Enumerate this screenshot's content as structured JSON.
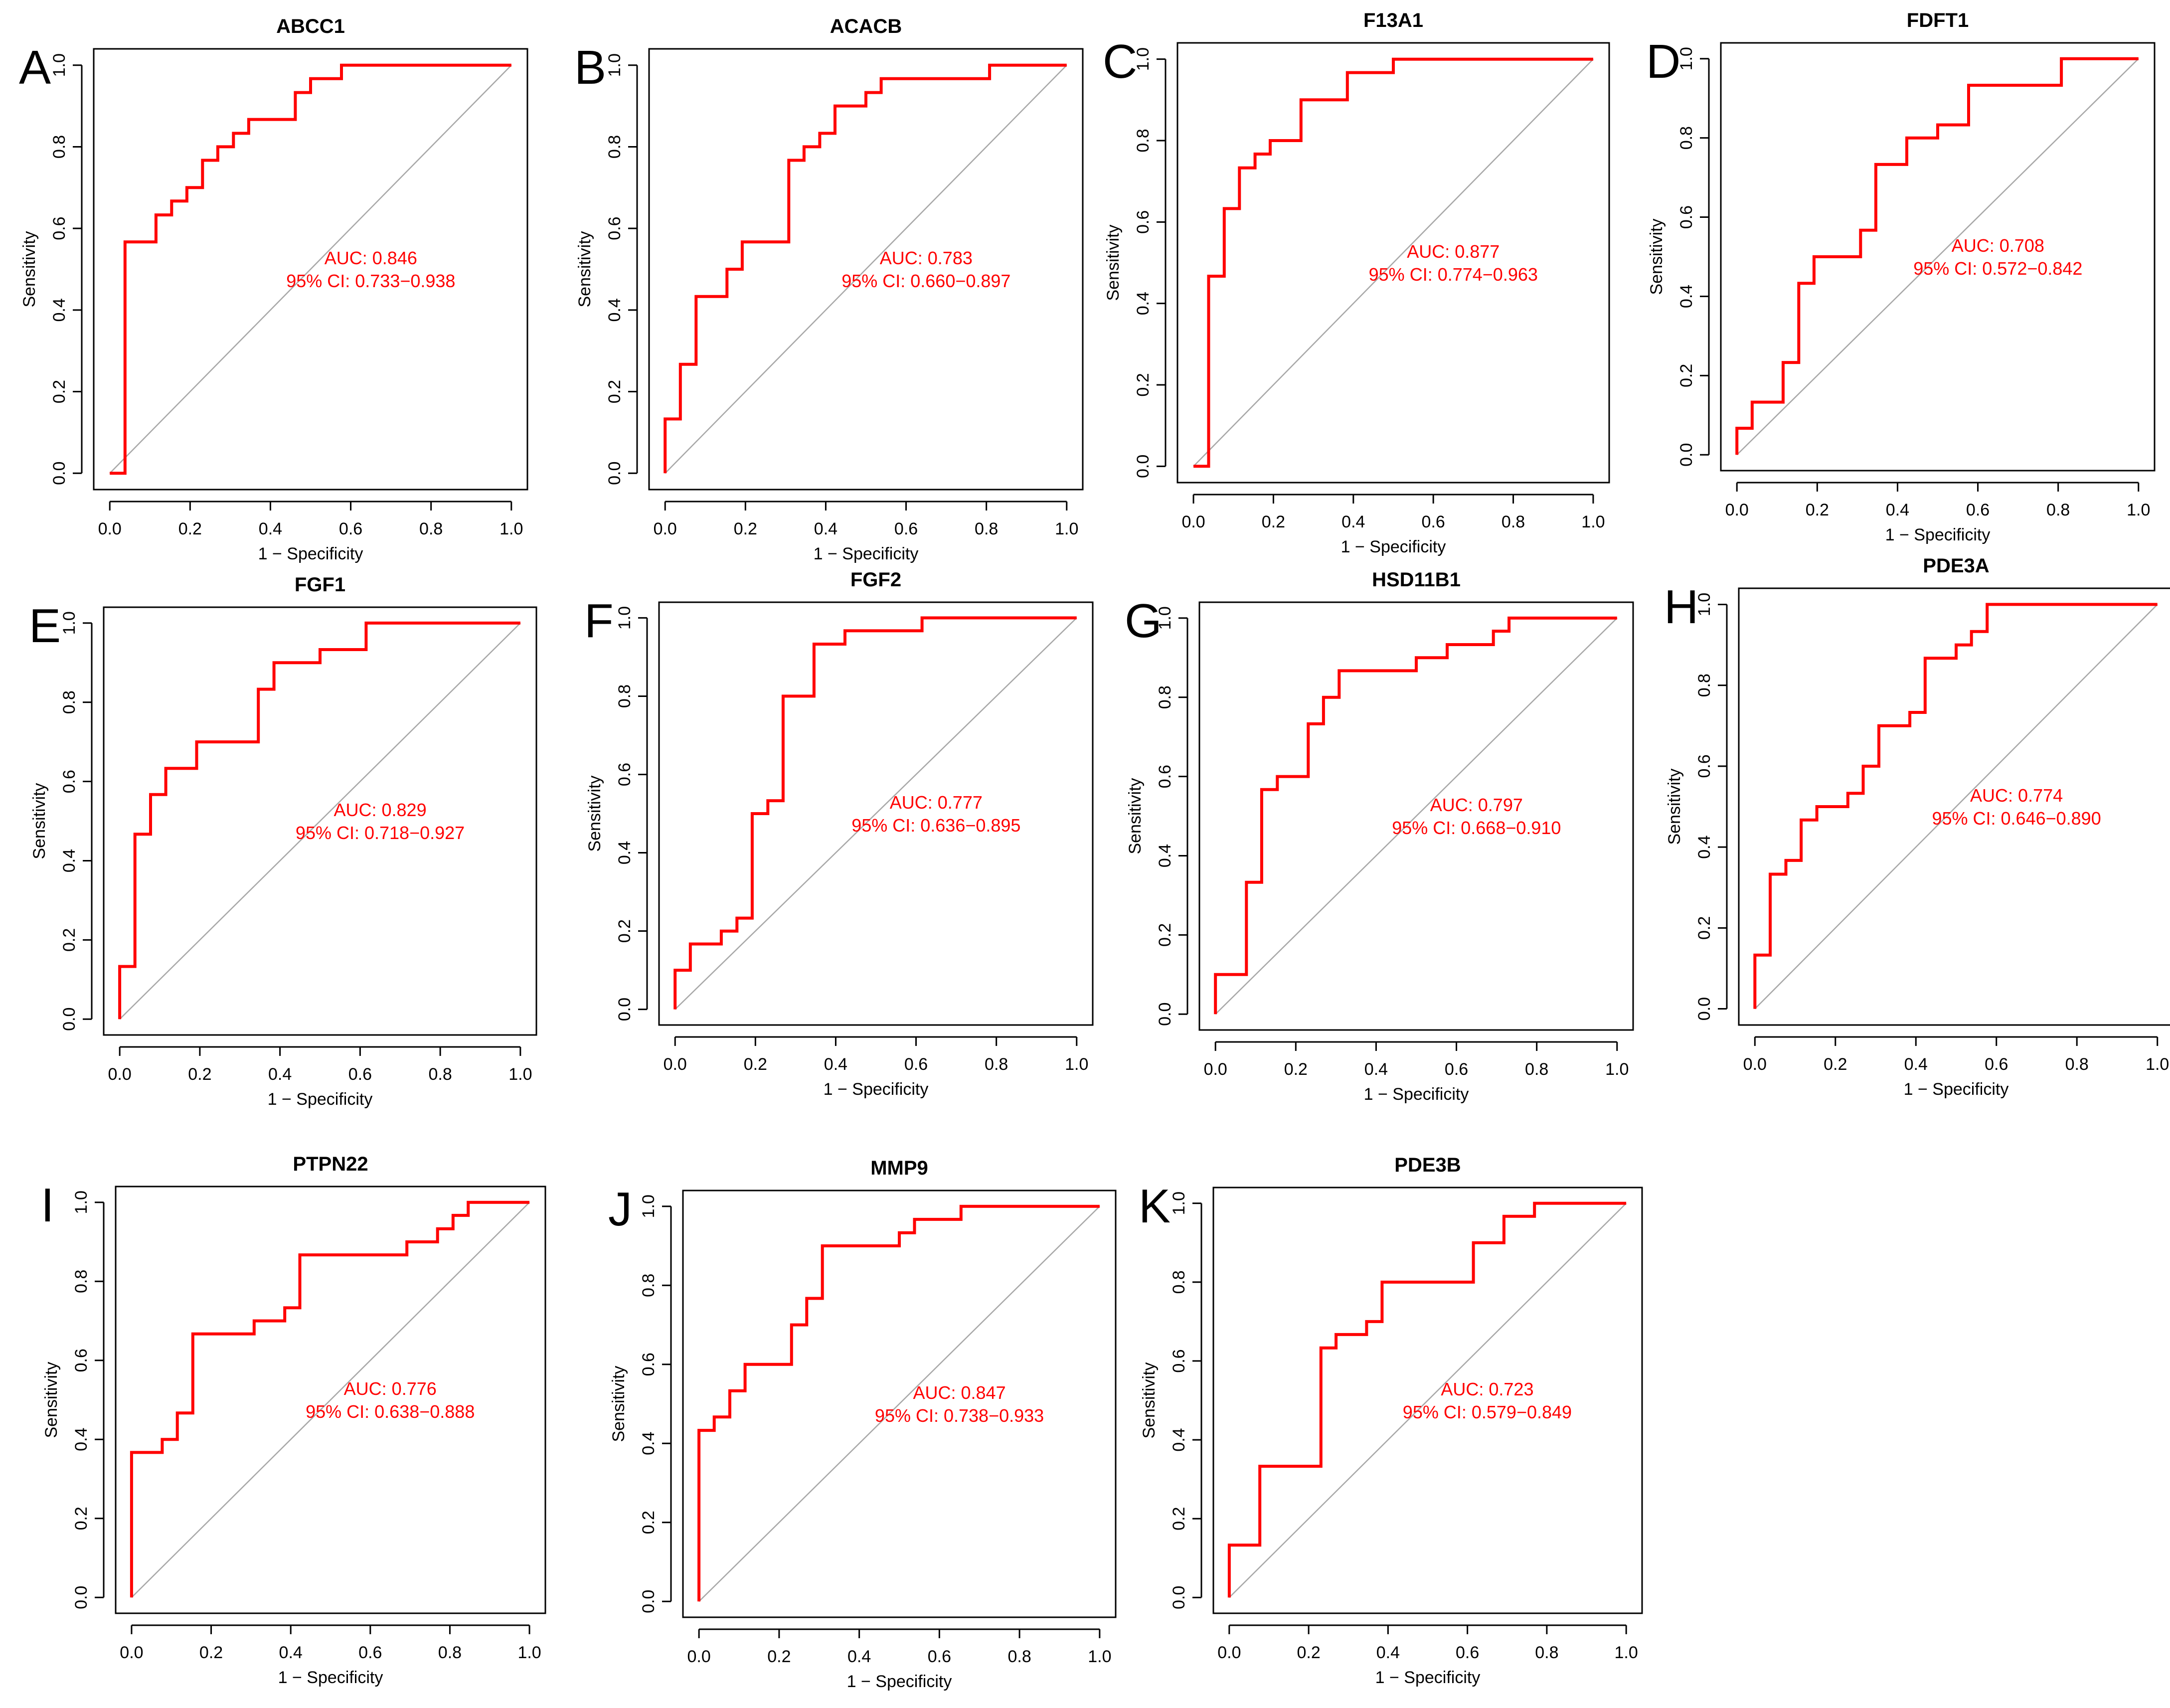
{
  "chart_data": [
    {
      "panel": "A",
      "type": "line",
      "title": "ABCC1",
      "xlabel": "1 − Specificity",
      "ylabel": "Sensitivity",
      "xlim": [
        0,
        1
      ],
      "ylim": [
        0,
        1
      ],
      "xticks": [
        "0.0",
        "0.2",
        "0.4",
        "0.6",
        "0.8",
        "1.0"
      ],
      "yticks": [
        "0.0",
        "0.2",
        "0.4",
        "0.6",
        "0.8",
        "1.0"
      ],
      "auc_label": "AUC: 0.846",
      "ci_label": "95% CI: 0.733−0.938",
      "roc": [
        [
          0,
          0
        ],
        [
          0.038,
          0
        ],
        [
          0.038,
          0.567
        ],
        [
          0.115,
          0.567
        ],
        [
          0.115,
          0.633
        ],
        [
          0.154,
          0.633
        ],
        [
          0.154,
          0.667
        ],
        [
          0.192,
          0.667
        ],
        [
          0.192,
          0.7
        ],
        [
          0.231,
          0.7
        ],
        [
          0.231,
          0.767
        ],
        [
          0.269,
          0.767
        ],
        [
          0.269,
          0.8
        ],
        [
          0.308,
          0.8
        ],
        [
          0.308,
          0.833
        ],
        [
          0.346,
          0.833
        ],
        [
          0.346,
          0.867
        ],
        [
          0.462,
          0.867
        ],
        [
          0.462,
          0.933
        ],
        [
          0.5,
          0.933
        ],
        [
          0.5,
          0.967
        ],
        [
          0.577,
          0.967
        ],
        [
          0.577,
          1
        ],
        [
          1,
          1
        ]
      ]
    },
    {
      "panel": "B",
      "type": "line",
      "title": "ACACB",
      "xlabel": "1 − Specificity",
      "ylabel": "Sensitivity",
      "xlim": [
        0,
        1
      ],
      "ylim": [
        0,
        1
      ],
      "xticks": [
        "0.0",
        "0.2",
        "0.4",
        "0.6",
        "0.8",
        "1.0"
      ],
      "yticks": [
        "0.0",
        "0.2",
        "0.4",
        "0.6",
        "0.8",
        "1.0"
      ],
      "auc_label": "AUC: 0.783",
      "ci_label": "95% CI: 0.660−0.897",
      "roc": [
        [
          0,
          0
        ],
        [
          0,
          0.133
        ],
        [
          0.038,
          0.133
        ],
        [
          0.038,
          0.267
        ],
        [
          0.077,
          0.267
        ],
        [
          0.077,
          0.433
        ],
        [
          0.154,
          0.433
        ],
        [
          0.154,
          0.5
        ],
        [
          0.192,
          0.5
        ],
        [
          0.192,
          0.567
        ],
        [
          0.308,
          0.567
        ],
        [
          0.308,
          0.767
        ],
        [
          0.346,
          0.767
        ],
        [
          0.346,
          0.8
        ],
        [
          0.385,
          0.8
        ],
        [
          0.385,
          0.833
        ],
        [
          0.423,
          0.833
        ],
        [
          0.423,
          0.9
        ],
        [
          0.5,
          0.9
        ],
        [
          0.5,
          0.933
        ],
        [
          0.538,
          0.933
        ],
        [
          0.538,
          0.967
        ],
        [
          0.808,
          0.967
        ],
        [
          0.808,
          1
        ],
        [
          1,
          1
        ]
      ]
    },
    {
      "panel": "C",
      "type": "line",
      "title": "F13A1",
      "xlabel": "1 − Specificity",
      "ylabel": "Sensitivity",
      "xlim": [
        0,
        1
      ],
      "ylim": [
        0,
        1
      ],
      "xticks": [
        "0.0",
        "0.2",
        "0.4",
        "0.6",
        "0.8",
        "1.0"
      ],
      "yticks": [
        "0.0",
        "0.2",
        "0.4",
        "0.6",
        "0.8",
        "1.0"
      ],
      "auc_label": "AUC: 0.877",
      "ci_label": "95% CI: 0.774−0.963",
      "roc": [
        [
          0,
          0
        ],
        [
          0.038,
          0
        ],
        [
          0.038,
          0.467
        ],
        [
          0.077,
          0.467
        ],
        [
          0.077,
          0.633
        ],
        [
          0.115,
          0.633
        ],
        [
          0.115,
          0.733
        ],
        [
          0.154,
          0.733
        ],
        [
          0.154,
          0.767
        ],
        [
          0.192,
          0.767
        ],
        [
          0.192,
          0.8
        ],
        [
          0.269,
          0.8
        ],
        [
          0.269,
          0.9
        ],
        [
          0.385,
          0.9
        ],
        [
          0.385,
          0.967
        ],
        [
          0.5,
          0.967
        ],
        [
          0.5,
          1
        ],
        [
          1,
          1
        ]
      ]
    },
    {
      "panel": "D",
      "type": "line",
      "title": "FDFT1",
      "xlabel": "1 − Specificity",
      "ylabel": "Sensitivity",
      "xlim": [
        0,
        1
      ],
      "ylim": [
        0,
        1
      ],
      "xticks": [
        "0.0",
        "0.2",
        "0.4",
        "0.6",
        "0.8",
        "1.0"
      ],
      "yticks": [
        "0.0",
        "0.2",
        "0.4",
        "0.6",
        "0.8",
        "1.0"
      ],
      "auc_label": "AUC: 0.708",
      "ci_label": "95% CI: 0.572−0.842",
      "roc": [
        [
          0,
          0
        ],
        [
          0,
          0.067
        ],
        [
          0.038,
          0.067
        ],
        [
          0.038,
          0.133
        ],
        [
          0.115,
          0.133
        ],
        [
          0.115,
          0.233
        ],
        [
          0.154,
          0.233
        ],
        [
          0.154,
          0.433
        ],
        [
          0.192,
          0.433
        ],
        [
          0.192,
          0.5
        ],
        [
          0.308,
          0.5
        ],
        [
          0.308,
          0.567
        ],
        [
          0.346,
          0.567
        ],
        [
          0.346,
          0.733
        ],
        [
          0.423,
          0.733
        ],
        [
          0.423,
          0.8
        ],
        [
          0.5,
          0.8
        ],
        [
          0.5,
          0.833
        ],
        [
          0.577,
          0.833
        ],
        [
          0.577,
          0.933
        ],
        [
          0.808,
          0.933
        ],
        [
          0.808,
          1
        ],
        [
          1,
          1
        ]
      ]
    },
    {
      "panel": "E",
      "type": "line",
      "title": "FGF1",
      "xlabel": "1 − Specificity",
      "ylabel": "Sensitivity",
      "xlim": [
        0,
        1
      ],
      "ylim": [
        0,
        1
      ],
      "xticks": [
        "0.0",
        "0.2",
        "0.4",
        "0.6",
        "0.8",
        "1.0"
      ],
      "yticks": [
        "0.0",
        "0.2",
        "0.4",
        "0.6",
        "0.8",
        "1.0"
      ],
      "auc_label": "AUC: 0.829",
      "ci_label": "95% CI: 0.718−0.927",
      "roc": [
        [
          0,
          0
        ],
        [
          0,
          0.133
        ],
        [
          0.038,
          0.133
        ],
        [
          0.038,
          0.467
        ],
        [
          0.077,
          0.467
        ],
        [
          0.077,
          0.567
        ],
        [
          0.115,
          0.567
        ],
        [
          0.115,
          0.633
        ],
        [
          0.192,
          0.633
        ],
        [
          0.192,
          0.7
        ],
        [
          0.346,
          0.7
        ],
        [
          0.346,
          0.833
        ],
        [
          0.385,
          0.833
        ],
        [
          0.385,
          0.9
        ],
        [
          0.5,
          0.9
        ],
        [
          0.5,
          0.933
        ],
        [
          0.615,
          0.933
        ],
        [
          0.615,
          1
        ],
        [
          1,
          1
        ]
      ]
    },
    {
      "panel": "F",
      "type": "line",
      "title": "FGF2",
      "xlabel": "1 − Specificity",
      "ylabel": "Sensitivity",
      "xlim": [
        0,
        1
      ],
      "ylim": [
        0,
        1
      ],
      "xticks": [
        "0.0",
        "0.2",
        "0.4",
        "0.6",
        "0.8",
        "1.0"
      ],
      "yticks": [
        "0.0",
        "0.2",
        "0.4",
        "0.6",
        "0.8",
        "1.0"
      ],
      "auc_label": "AUC: 0.777",
      "ci_label": "95% CI: 0.636−0.895",
      "roc": [
        [
          0,
          0
        ],
        [
          0,
          0.1
        ],
        [
          0.038,
          0.1
        ],
        [
          0.038,
          0.167
        ],
        [
          0.115,
          0.167
        ],
        [
          0.115,
          0.2
        ],
        [
          0.154,
          0.2
        ],
        [
          0.154,
          0.233
        ],
        [
          0.192,
          0.233
        ],
        [
          0.192,
          0.5
        ],
        [
          0.231,
          0.5
        ],
        [
          0.231,
          0.533
        ],
        [
          0.269,
          0.533
        ],
        [
          0.269,
          0.8
        ],
        [
          0.346,
          0.8
        ],
        [
          0.346,
          0.933
        ],
        [
          0.423,
          0.933
        ],
        [
          0.423,
          0.967
        ],
        [
          0.615,
          0.967
        ],
        [
          0.615,
          1
        ],
        [
          1,
          1
        ]
      ]
    },
    {
      "panel": "G",
      "type": "line",
      "title": "HSD11B1",
      "xlabel": "1 − Specificity",
      "ylabel": "Sensitivity",
      "xlim": [
        0,
        1
      ],
      "ylim": [
        0,
        1
      ],
      "xticks": [
        "0.0",
        "0.2",
        "0.4",
        "0.6",
        "0.8",
        "1.0"
      ],
      "yticks": [
        "0.0",
        "0.2",
        "0.4",
        "0.6",
        "0.8",
        "1.0"
      ],
      "auc_label": "AUC: 0.797",
      "ci_label": "95% CI: 0.668−0.910",
      "roc": [
        [
          0,
          0
        ],
        [
          0,
          0.1
        ],
        [
          0.077,
          0.1
        ],
        [
          0.077,
          0.333
        ],
        [
          0.115,
          0.333
        ],
        [
          0.115,
          0.567
        ],
        [
          0.154,
          0.567
        ],
        [
          0.154,
          0.6
        ],
        [
          0.231,
          0.6
        ],
        [
          0.231,
          0.733
        ],
        [
          0.269,
          0.733
        ],
        [
          0.269,
          0.8
        ],
        [
          0.308,
          0.8
        ],
        [
          0.308,
          0.867
        ],
        [
          0.5,
          0.867
        ],
        [
          0.5,
          0.9
        ],
        [
          0.577,
          0.9
        ],
        [
          0.577,
          0.933
        ],
        [
          0.692,
          0.933
        ],
        [
          0.692,
          0.967
        ],
        [
          0.731,
          0.967
        ],
        [
          0.731,
          1
        ],
        [
          1,
          1
        ]
      ]
    },
    {
      "panel": "H",
      "type": "line",
      "title": "PDE3A",
      "xlabel": "1 − Specificity",
      "ylabel": "Sensitivity",
      "xlim": [
        0,
        1
      ],
      "ylim": [
        0,
        1
      ],
      "xticks": [
        "0.0",
        "0.2",
        "0.4",
        "0.6",
        "0.8",
        "1.0"
      ],
      "yticks": [
        "0.0",
        "0.2",
        "0.4",
        "0.6",
        "0.8",
        "1.0"
      ],
      "auc_label": "AUC: 0.774",
      "ci_label": "95% CI: 0.646−0.890",
      "roc": [
        [
          0,
          0
        ],
        [
          0,
          0.133
        ],
        [
          0.038,
          0.133
        ],
        [
          0.038,
          0.333
        ],
        [
          0.077,
          0.333
        ],
        [
          0.077,
          0.367
        ],
        [
          0.115,
          0.367
        ],
        [
          0.115,
          0.467
        ],
        [
          0.154,
          0.467
        ],
        [
          0.154,
          0.5
        ],
        [
          0.231,
          0.5
        ],
        [
          0.231,
          0.533
        ],
        [
          0.269,
          0.533
        ],
        [
          0.269,
          0.6
        ],
        [
          0.308,
          0.6
        ],
        [
          0.308,
          0.7
        ],
        [
          0.385,
          0.7
        ],
        [
          0.385,
          0.733
        ],
        [
          0.423,
          0.733
        ],
        [
          0.423,
          0.867
        ],
        [
          0.5,
          0.867
        ],
        [
          0.5,
          0.9
        ],
        [
          0.538,
          0.9
        ],
        [
          0.538,
          0.933
        ],
        [
          0.577,
          0.933
        ],
        [
          0.577,
          1
        ],
        [
          1,
          1
        ]
      ]
    },
    {
      "panel": "I",
      "type": "line",
      "title": "PTPN22",
      "xlabel": "1 − Specificity",
      "ylabel": "Sensitivity",
      "xlim": [
        0,
        1
      ],
      "ylim": [
        0,
        1
      ],
      "xticks": [
        "0.0",
        "0.2",
        "0.4",
        "0.6",
        "0.8",
        "1.0"
      ],
      "yticks": [
        "0.0",
        "0.2",
        "0.4",
        "0.6",
        "0.8",
        "1.0"
      ],
      "auc_label": "AUC: 0.776",
      "ci_label": "95% CI: 0.638−0.888",
      "roc": [
        [
          0,
          0
        ],
        [
          0,
          0.367
        ],
        [
          0.077,
          0.367
        ],
        [
          0.077,
          0.4
        ],
        [
          0.115,
          0.4
        ],
        [
          0.115,
          0.467
        ],
        [
          0.154,
          0.467
        ],
        [
          0.154,
          0.667
        ],
        [
          0.308,
          0.667
        ],
        [
          0.308,
          0.7
        ],
        [
          0.385,
          0.7
        ],
        [
          0.385,
          0.733
        ],
        [
          0.423,
          0.733
        ],
        [
          0.423,
          0.867
        ],
        [
          0.692,
          0.867
        ],
        [
          0.692,
          0.9
        ],
        [
          0.769,
          0.9
        ],
        [
          0.769,
          0.933
        ],
        [
          0.808,
          0.933
        ],
        [
          0.808,
          0.967
        ],
        [
          0.846,
          0.967
        ],
        [
          0.846,
          1
        ],
        [
          1,
          1
        ]
      ]
    },
    {
      "panel": "J",
      "type": "line",
      "title": "MMP9",
      "xlabel": "1 − Specificity",
      "ylabel": "Sensitivity",
      "xlim": [
        0,
        1
      ],
      "ylim": [
        0,
        1
      ],
      "xticks": [
        "0.0",
        "0.2",
        "0.4",
        "0.6",
        "0.8",
        "1.0"
      ],
      "yticks": [
        "0.0",
        "0.2",
        "0.4",
        "0.6",
        "0.8",
        "1.0"
      ],
      "auc_label": "AUC: 0.847",
      "ci_label": "95% CI: 0.738−0.933",
      "roc": [
        [
          0,
          0
        ],
        [
          0,
          0.433
        ],
        [
          0.038,
          0.433
        ],
        [
          0.038,
          0.467
        ],
        [
          0.077,
          0.467
        ],
        [
          0.077,
          0.533
        ],
        [
          0.115,
          0.533
        ],
        [
          0.115,
          0.6
        ],
        [
          0.231,
          0.6
        ],
        [
          0.231,
          0.7
        ],
        [
          0.269,
          0.7
        ],
        [
          0.269,
          0.767
        ],
        [
          0.308,
          0.767
        ],
        [
          0.308,
          0.9
        ],
        [
          0.5,
          0.9
        ],
        [
          0.5,
          0.933
        ],
        [
          0.538,
          0.933
        ],
        [
          0.538,
          0.967
        ],
        [
          0.654,
          0.967
        ],
        [
          0.654,
          1
        ],
        [
          1,
          1
        ]
      ]
    },
    {
      "panel": "K",
      "type": "line",
      "title": "PDE3B",
      "xlabel": "1 − Specificity",
      "ylabel": "Sensitivity",
      "xlim": [
        0,
        1
      ],
      "ylim": [
        0,
        1
      ],
      "xticks": [
        "0.0",
        "0.2",
        "0.4",
        "0.6",
        "0.8",
        "1.0"
      ],
      "yticks": [
        "0.0",
        "0.2",
        "0.4",
        "0.6",
        "0.8",
        "1.0"
      ],
      "auc_label": "AUC: 0.723",
      "ci_label": "95% CI: 0.579−0.849",
      "roc": [
        [
          0,
          0
        ],
        [
          0,
          0.133
        ],
        [
          0.077,
          0.133
        ],
        [
          0.077,
          0.333
        ],
        [
          0.231,
          0.333
        ],
        [
          0.231,
          0.633
        ],
        [
          0.269,
          0.633
        ],
        [
          0.269,
          0.667
        ],
        [
          0.346,
          0.667
        ],
        [
          0.346,
          0.7
        ],
        [
          0.385,
          0.7
        ],
        [
          0.385,
          0.8
        ],
        [
          0.615,
          0.8
        ],
        [
          0.615,
          0.9
        ],
        [
          0.692,
          0.9
        ],
        [
          0.692,
          0.967
        ],
        [
          0.769,
          0.967
        ],
        [
          0.769,
          1
        ],
        [
          1,
          1
        ]
      ]
    }
  ]
}
